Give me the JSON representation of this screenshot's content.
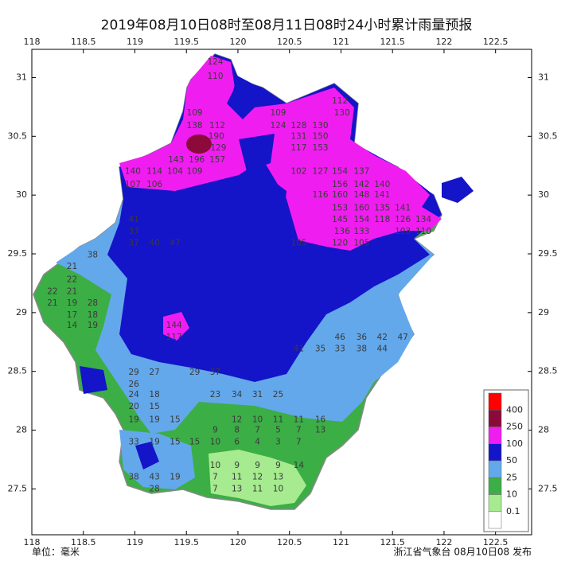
{
  "chart_data": {
    "type": "rain-map",
    "title": "2019年08月10日08时至08月11日08时24小时累计雨量预报",
    "unit_label": "单位：毫米",
    "issuer": "浙江省气象台 08月10日08 发布",
    "xlim": [
      118,
      122.85
    ],
    "ylim": [
      27.11,
      31.24
    ],
    "xticks": [
      118,
      118.5,
      119,
      119.5,
      120,
      120.5,
      121,
      121.5,
      122,
      122.5
    ],
    "yticks": [
      27.5,
      28,
      28.5,
      29,
      29.5,
      30,
      30.5,
      31
    ],
    "legend": {
      "thresholds": [
        400,
        250,
        100,
        50,
        25,
        10,
        0.1
      ],
      "colors": [
        "#ff0000",
        "#8b0a3a",
        "#f01df0",
        "#1414c8",
        "#63a8ea",
        "#3cae46",
        "#a6eb8f",
        "#ffffff"
      ]
    },
    "stations": {
      "lon": [
        119.78,
        119.78,
        119.58,
        119.58,
        119.8,
        119.79,
        119.81,
        119.4,
        119.6,
        119.8,
        118.98,
        119.19,
        119.39,
        119.58,
        118.98,
        119.19,
        120.39,
        121.01,
        120.39,
        120.59,
        120.8,
        120.59,
        120.8,
        120.59,
        120.8,
        120.99,
        120.59,
        120.8,
        120.99,
        121.2,
        120.99,
        121.2,
        121.4,
        120.8,
        120.99,
        121.2,
        121.4,
        120.99,
        121.2,
        121.4,
        121.6,
        120.99,
        121.2,
        121.4,
        121.6,
        121.8,
        121.01,
        121.2,
        121.6,
        121.8,
        120.59,
        120.99,
        121.2,
        118.59,
        118.39,
        118.39,
        118.2,
        118.39,
        118.2,
        118.39,
        118.59,
        118.39,
        118.59,
        118.39,
        118.59,
        118.99,
        118.99,
        118.99,
        119.19,
        119.39,
        119.38,
        119.38,
        120.99,
        121.2,
        121.4,
        121.6,
        120.59,
        120.8,
        120.99,
        121.2,
        121.4,
        118.99,
        119.19,
        119.58,
        119.78,
        118.99,
        118.99,
        119.19,
        119.78,
        119.99,
        120.19,
        120.39,
        118.99,
        119.19,
        118.99,
        119.19,
        119.39,
        119.99,
        120.19,
        120.39,
        120.59,
        120.8,
        119.78,
        119.99,
        120.19,
        120.39,
        120.59,
        120.8,
        119.78,
        119.99,
        120.19,
        120.39,
        120.59,
        119.78,
        119.99,
        120.19,
        120.39,
        120.59,
        119.78,
        119.99,
        120.19,
        120.39,
        119.78,
        119.99,
        120.19,
        120.39,
        118.99,
        119.19,
        119.39,
        119.19,
        118.99,
        119.19,
        119.39,
        119.58
      ],
      "lat": [
        31.13,
        31.01,
        30.7,
        30.59,
        30.59,
        30.5,
        30.4,
        30.3,
        30.3,
        30.3,
        30.2,
        30.2,
        30.2,
        30.2,
        30.09,
        30.09,
        30.7,
        30.7,
        30.59,
        30.59,
        30.59,
        30.5,
        30.5,
        30.4,
        30.4,
        30.8,
        30.2,
        30.2,
        30.2,
        30.2,
        30.09,
        30.09,
        30.09,
        30.0,
        30.0,
        30.0,
        30.0,
        29.89,
        29.89,
        29.89,
        29.89,
        29.79,
        29.79,
        29.79,
        29.79,
        29.79,
        29.69,
        29.69,
        29.69,
        29.69,
        29.59,
        29.59,
        29.59,
        29.49,
        29.39,
        29.28,
        29.18,
        29.18,
        29.08,
        29.08,
        29.08,
        28.98,
        28.98,
        28.89,
        28.89,
        29.79,
        29.69,
        29.59,
        29.59,
        29.59,
        28.89,
        28.79,
        28.79,
        28.79,
        28.79,
        28.79,
        28.69,
        28.69,
        28.69,
        28.69,
        28.69,
        28.49,
        28.49,
        28.49,
        28.49,
        28.39,
        28.3,
        28.3,
        28.3,
        28.3,
        28.3,
        28.3,
        28.2,
        28.2,
        28.09,
        28.09,
        28.09,
        28.09,
        28.09,
        28.09,
        28.09,
        28.09,
        28.0,
        28.0,
        28.0,
        28.0,
        28.0,
        28.0,
        27.9,
        27.9,
        27.9,
        27.9,
        27.9,
        27.7,
        27.7,
        27.7,
        27.7,
        27.7,
        27.6,
        27.6,
        27.6,
        27.6,
        27.5,
        27.5,
        27.5,
        27.5,
        27.6,
        27.6,
        27.6,
        27.5,
        27.9,
        27.9,
        27.9,
        27.9
      ],
      "values": [
        124,
        110,
        109,
        138,
        112,
        190,
        129,
        143,
        196,
        157,
        140,
        114,
        104,
        109,
        107,
        106,
        109,
        130,
        124,
        128,
        130,
        131,
        150,
        117,
        153,
        112,
        102,
        127,
        154,
        137,
        156,
        142,
        140,
        116,
        160,
        148,
        141,
        153,
        160,
        135,
        141,
        145,
        154,
        118,
        126,
        134,
        136,
        133,
        103,
        110,
        105,
        120,
        105,
        38,
        21,
        22,
        22,
        21,
        21,
        19,
        28,
        17,
        18,
        14,
        19,
        41,
        37,
        37,
        40,
        47,
        144,
        117,
        46,
        36,
        42,
        47,
        41,
        35,
        33,
        38,
        44,
        29,
        27,
        29,
        37,
        26,
        24,
        18,
        23,
        34,
        31,
        25,
        20,
        15,
        19,
        19,
        15,
        12,
        10,
        11,
        11,
        16,
        9,
        8,
        7,
        5,
        7,
        13,
        10,
        6,
        4,
        3,
        7,
        10,
        9,
        9,
        9,
        14,
        7,
        11,
        12,
        13,
        7,
        13,
        11,
        10,
        38,
        43,
        19,
        28,
        33,
        19,
        15,
        15
      ]
    }
  }
}
